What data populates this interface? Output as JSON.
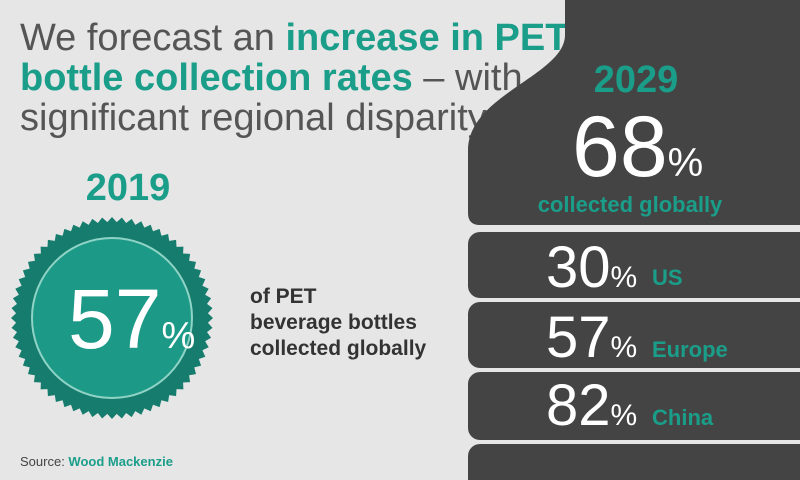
{
  "title": {
    "line_1": [
      "We forecast an ",
      "increase in PET"
    ],
    "line_2": [
      "bottle collection rates",
      " – with"
    ],
    "line_3": [
      "significant regional disparity"
    ]
  },
  "current": {
    "year": "2019",
    "value": 57,
    "unit": "%",
    "caption": [
      "of PET",
      "beverage bottles",
      "collected globally"
    ]
  },
  "forecast": {
    "year": "2029",
    "value": 68,
    "unit": "%",
    "caption": "collected globally",
    "regions": [
      {
        "value": 30,
        "unit": "%",
        "name": "US"
      },
      {
        "value": 57,
        "unit": "%",
        "name": "Europe"
      },
      {
        "value": 82,
        "unit": "%",
        "name": "China"
      }
    ]
  },
  "source": {
    "label": "Source: ",
    "name": "Wood Mackenzie"
  }
}
